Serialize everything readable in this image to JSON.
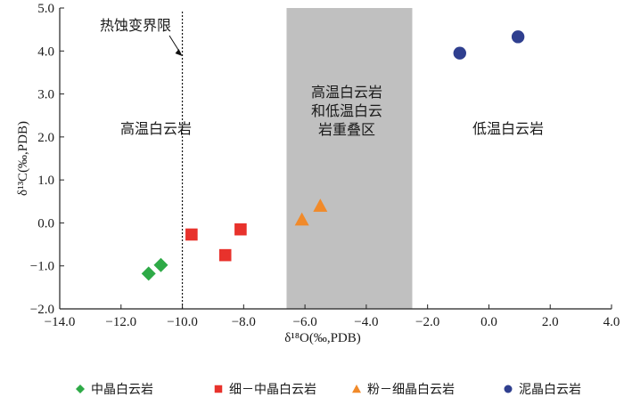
{
  "chart_data": {
    "type": "scatter",
    "xlabel": "δ¹⁸O(‰,PDB)",
    "ylabel": "δ¹³C(‰,PDB)",
    "xlim": [
      -14.0,
      4.0
    ],
    "ylim": [
      -2.0,
      5.0
    ],
    "x_ticks": [
      "−14.0",
      "−12.0",
      "−10.0",
      "−8.0",
      "−6.0",
      "−4.0",
      "−2.0",
      "0.0",
      "2.0",
      "4.0"
    ],
    "y_ticks": [
      "−2.0",
      "−1.0",
      "0.0",
      "1.0",
      "2.0",
      "3.0",
      "4.0",
      "5.0"
    ],
    "grid": false,
    "legend_position": "bottom",
    "shaded_region": {
      "x_range": [
        -6.6,
        -2.5
      ],
      "color": "#c0c0c0"
    },
    "vertical_line": {
      "x": -10.0,
      "style": "dotted",
      "label": "热蚀变界限"
    },
    "zone_labels": [
      {
        "lines": [
          "高温白云岩"
        ]
      },
      {
        "lines": [
          "高温白云岩",
          "和低温白云",
          "岩重叠区"
        ]
      },
      {
        "lines": [
          "低温白云岩"
        ]
      }
    ],
    "series": [
      {
        "name": "中晶白云岩",
        "marker": "diamond",
        "color": "#2eaa47",
        "points": [
          [
            -11.1,
            -1.18
          ],
          [
            -10.7,
            -0.98
          ]
        ]
      },
      {
        "name": "细－中晶白云岩",
        "marker": "square",
        "color": "#e8322c",
        "points": [
          [
            -9.7,
            -0.27
          ],
          [
            -8.6,
            -0.75
          ],
          [
            -8.1,
            -0.15
          ]
        ]
      },
      {
        "name": "粉－细晶白云岩",
        "marker": "triangle",
        "color": "#f18a2a",
        "points": [
          [
            -6.1,
            0.08
          ],
          [
            -5.5,
            0.4
          ]
        ]
      },
      {
        "name": "泥晶白云岩",
        "marker": "circle",
        "color": "#2f3f8f",
        "points": [
          [
            -0.95,
            3.95
          ],
          [
            0.95,
            4.33
          ]
        ]
      }
    ]
  }
}
